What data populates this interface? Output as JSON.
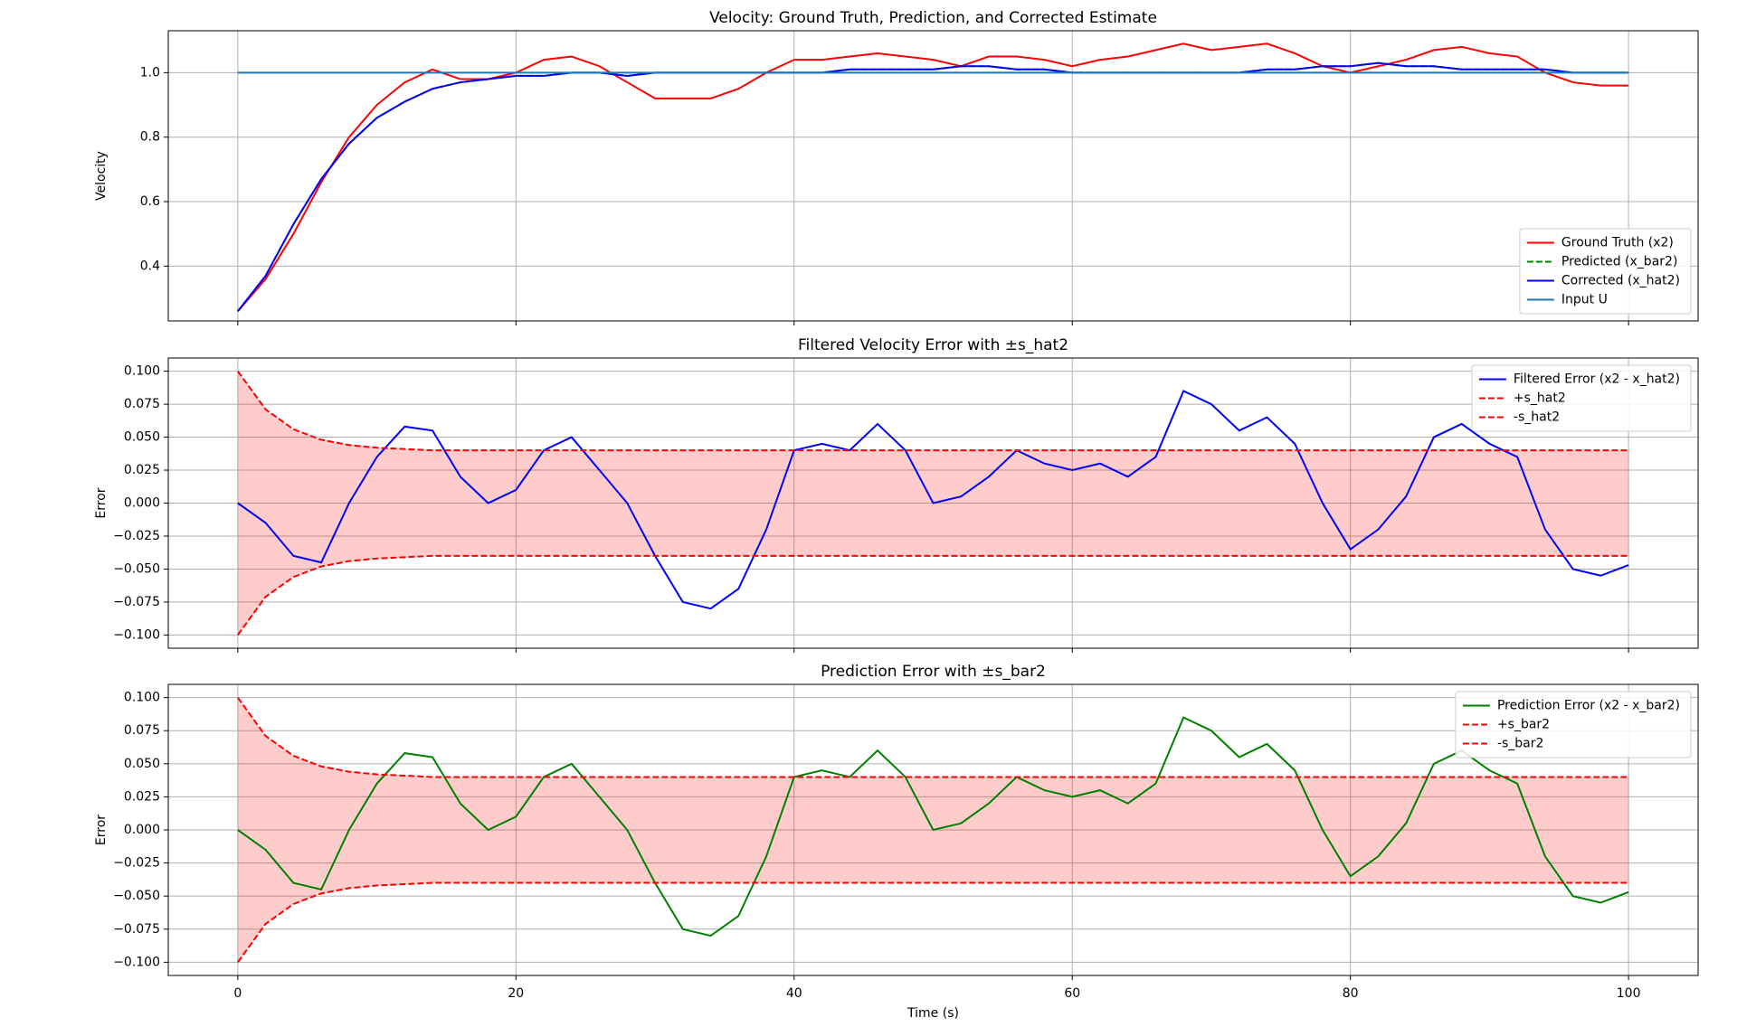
{
  "chart_data": [
    {
      "type": "line",
      "title": "Velocity: Ground Truth, Prediction, and Corrected Estimate",
      "ylabel": "Velocity",
      "x": [
        0,
        2,
        4,
        6,
        8,
        10,
        12,
        14,
        16,
        18,
        20,
        22,
        24,
        26,
        28,
        30,
        32,
        34,
        36,
        38,
        40,
        42,
        44,
        46,
        48,
        50,
        52,
        54,
        56,
        58,
        60,
        62,
        64,
        66,
        68,
        70,
        72,
        74,
        76,
        78,
        80,
        82,
        84,
        86,
        88,
        90,
        92,
        94,
        96,
        98,
        100
      ],
      "series": [
        {
          "name": "Ground Truth (x2)",
          "color": "#ff0000",
          "dash": false,
          "values": [
            0.26,
            0.36,
            0.5,
            0.66,
            0.8,
            0.9,
            0.97,
            1.01,
            0.98,
            0.98,
            1.0,
            1.04,
            1.05,
            1.02,
            0.97,
            0.92,
            0.92,
            0.92,
            0.95,
            1.0,
            1.04,
            1.04,
            1.05,
            1.06,
            1.05,
            1.04,
            1.02,
            1.05,
            1.05,
            1.04,
            1.02,
            1.04,
            1.05,
            1.07,
            1.09,
            1.07,
            1.08,
            1.09,
            1.06,
            1.02,
            1.0,
            1.02,
            1.04,
            1.07,
            1.08,
            1.06,
            1.05,
            1.0,
            0.97,
            0.96,
            0.96
          ]
        },
        {
          "name": "Predicted (x_bar2)",
          "color": "#008000",
          "dash": true,
          "values": [
            0.26,
            0.37,
            0.53,
            0.67,
            0.78,
            0.86,
            0.91,
            0.95,
            0.97,
            0.98,
            0.99,
            0.99,
            1.0,
            1.0,
            0.99,
            1.0,
            1.0,
            1.0,
            1.0,
            1.0,
            1.0,
            1.0,
            1.01,
            1.01,
            1.01,
            1.01,
            1.02,
            1.02,
            1.01,
            1.01,
            1.0,
            1.0,
            1.0,
            1.0,
            1.0,
            1.0,
            1.0,
            1.01,
            1.01,
            1.02,
            1.02,
            1.03,
            1.02,
            1.02,
            1.01,
            1.01,
            1.01,
            1.01,
            1.0,
            1.0,
            1.0
          ]
        },
        {
          "name": "Corrected (x_hat2)",
          "color": "#0000ff",
          "dash": false,
          "values": [
            0.26,
            0.37,
            0.53,
            0.67,
            0.78,
            0.86,
            0.91,
            0.95,
            0.97,
            0.98,
            0.99,
            0.99,
            1.0,
            1.0,
            0.99,
            1.0,
            1.0,
            1.0,
            1.0,
            1.0,
            1.0,
            1.0,
            1.01,
            1.01,
            1.01,
            1.01,
            1.02,
            1.02,
            1.01,
            1.01,
            1.0,
            1.0,
            1.0,
            1.0,
            1.0,
            1.0,
            1.0,
            1.01,
            1.01,
            1.02,
            1.02,
            1.03,
            1.02,
            1.02,
            1.01,
            1.01,
            1.01,
            1.01,
            1.0,
            1.0,
            1.0
          ]
        },
        {
          "name": "Input U",
          "color": "#1f77b4",
          "dash": false,
          "values": [
            1,
            1,
            1,
            1,
            1,
            1,
            1,
            1,
            1,
            1,
            1,
            1,
            1,
            1,
            1,
            1,
            1,
            1,
            1,
            1,
            1,
            1,
            1,
            1,
            1,
            1,
            1,
            1,
            1,
            1,
            1,
            1,
            1,
            1,
            1,
            1,
            1,
            1,
            1,
            1,
            1,
            1,
            1,
            1,
            1,
            1,
            1,
            1,
            1,
            1,
            1
          ]
        }
      ],
      "xlim": [
        -5,
        105
      ],
      "xticks": [
        0,
        20,
        40,
        60,
        80,
        100
      ],
      "ylim": [
        0.23,
        1.13
      ],
      "yticks": [
        0.4,
        0.6,
        0.8,
        {
          "value": 1,
          "label": "1.0"
        }
      ],
      "grid": true,
      "legend": "lower right"
    },
    {
      "type": "line",
      "title": "Filtered Velocity Error with ±s_hat2",
      "ylabel": "Error",
      "x": [
        0,
        2,
        4,
        6,
        8,
        10,
        12,
        14,
        16,
        18,
        20,
        22,
        24,
        26,
        28,
        30,
        32,
        34,
        36,
        38,
        40,
        42,
        44,
        46,
        48,
        50,
        52,
        54,
        56,
        58,
        60,
        62,
        64,
        66,
        68,
        70,
        72,
        74,
        76,
        78,
        80,
        82,
        84,
        86,
        88,
        90,
        92,
        94,
        96,
        98,
        100
      ],
      "series": [
        {
          "name": "Filtered Error (x2 - x_hat2)",
          "color": "#0000ff",
          "dash": false,
          "values": [
            0,
            -0.015,
            -0.04,
            -0.045,
            0,
            0.035,
            0.058,
            0.055,
            0.02,
            0,
            0.01,
            0.04,
            0.05,
            0.025,
            0,
            -0.04,
            -0.075,
            -0.08,
            -0.065,
            -0.02,
            0.04,
            0.045,
            0.04,
            0.06,
            0.04,
            0,
            0.005,
            0.02,
            0.04,
            0.03,
            0.025,
            0.03,
            0.02,
            0.035,
            0.085,
            0.075,
            0.055,
            0.065,
            0.045,
            0,
            -0.035,
            -0.02,
            0.005,
            0.05,
            0.06,
            0.045,
            0.035,
            -0.02,
            -0.05,
            -0.055,
            -0.047
          ]
        },
        {
          "name": "+s_hat2",
          "color": "#ff0000",
          "dash": true,
          "values": [
            0.1,
            0.071,
            0.056,
            0.048,
            0.044,
            0.042,
            0.041,
            0.04,
            0.04,
            0.04,
            0.04,
            0.04,
            0.04,
            0.04,
            0.04,
            0.04,
            0.04,
            0.04,
            0.04,
            0.04,
            0.04,
            0.04,
            0.04,
            0.04,
            0.04,
            0.04,
            0.04,
            0.04,
            0.04,
            0.04,
            0.04,
            0.04,
            0.04,
            0.04,
            0.04,
            0.04,
            0.04,
            0.04,
            0.04,
            0.04,
            0.04,
            0.04,
            0.04,
            0.04,
            0.04,
            0.04,
            0.04,
            0.04,
            0.04,
            0.04,
            0.04
          ]
        },
        {
          "name": "-s_hat2",
          "color": "#ff0000",
          "dash": true,
          "values": [
            -0.1,
            -0.071,
            -0.056,
            -0.048,
            -0.044,
            -0.042,
            -0.041,
            -0.04,
            -0.04,
            -0.04,
            -0.04,
            -0.04,
            -0.04,
            -0.04,
            -0.04,
            -0.04,
            -0.04,
            -0.04,
            -0.04,
            -0.04,
            -0.04,
            -0.04,
            -0.04,
            -0.04,
            -0.04,
            -0.04,
            -0.04,
            -0.04,
            -0.04,
            -0.04,
            -0.04,
            -0.04,
            -0.04,
            -0.04,
            -0.04,
            -0.04,
            -0.04,
            -0.04,
            -0.04,
            -0.04,
            -0.04,
            -0.04,
            -0.04,
            -0.04,
            -0.04,
            -0.04,
            -0.04,
            -0.04,
            -0.04,
            -0.04,
            -0.04
          ]
        }
      ],
      "fill_color": "rgba(255,0,0,0.2)",
      "xlim": [
        -5,
        105
      ],
      "xticks": [
        0,
        20,
        40,
        60,
        80,
        100
      ],
      "ylim": [
        -0.11,
        0.11
      ],
      "yticks": [
        {
          "value": -0.1,
          "label": "−0.100"
        },
        {
          "value": -0.075,
          "label": "−0.075"
        },
        {
          "value": -0.05,
          "label": "−0.050"
        },
        {
          "value": -0.025,
          "label": "−0.025"
        },
        {
          "value": 0,
          "label": "0.000"
        },
        {
          "value": 0.025,
          "label": "0.025"
        },
        {
          "value": 0.05,
          "label": "0.050"
        },
        {
          "value": 0.075,
          "label": "0.075"
        },
        {
          "value": 0.1,
          "label": "0.100"
        }
      ],
      "grid": true,
      "legend": "upper right"
    },
    {
      "type": "line",
      "title": "Prediction Error with ±s_bar2",
      "ylabel": "Error",
      "xlabel": "Time (s)",
      "x": [
        0,
        2,
        4,
        6,
        8,
        10,
        12,
        14,
        16,
        18,
        20,
        22,
        24,
        26,
        28,
        30,
        32,
        34,
        36,
        38,
        40,
        42,
        44,
        46,
        48,
        50,
        52,
        54,
        56,
        58,
        60,
        62,
        64,
        66,
        68,
        70,
        72,
        74,
        76,
        78,
        80,
        82,
        84,
        86,
        88,
        90,
        92,
        94,
        96,
        98,
        100
      ],
      "series": [
        {
          "name": "Prediction Error (x2 - x_bar2)",
          "color": "#008000",
          "dash": false,
          "values": [
            0,
            -0.015,
            -0.04,
            -0.045,
            0,
            0.035,
            0.058,
            0.055,
            0.02,
            0,
            0.01,
            0.04,
            0.05,
            0.025,
            0,
            -0.04,
            -0.075,
            -0.08,
            -0.065,
            -0.02,
            0.04,
            0.045,
            0.04,
            0.06,
            0.04,
            0,
            0.005,
            0.02,
            0.04,
            0.03,
            0.025,
            0.03,
            0.02,
            0.035,
            0.085,
            0.075,
            0.055,
            0.065,
            0.045,
            0,
            -0.035,
            -0.02,
            0.005,
            0.05,
            0.06,
            0.045,
            0.035,
            -0.02,
            -0.05,
            -0.055,
            -0.047
          ]
        },
        {
          "name": "+s_bar2",
          "color": "#ff0000",
          "dash": true,
          "values": [
            0.1,
            0.071,
            0.056,
            0.048,
            0.044,
            0.042,
            0.041,
            0.04,
            0.04,
            0.04,
            0.04,
            0.04,
            0.04,
            0.04,
            0.04,
            0.04,
            0.04,
            0.04,
            0.04,
            0.04,
            0.04,
            0.04,
            0.04,
            0.04,
            0.04,
            0.04,
            0.04,
            0.04,
            0.04,
            0.04,
            0.04,
            0.04,
            0.04,
            0.04,
            0.04,
            0.04,
            0.04,
            0.04,
            0.04,
            0.04,
            0.04,
            0.04,
            0.04,
            0.04,
            0.04,
            0.04,
            0.04,
            0.04,
            0.04,
            0.04,
            0.04
          ]
        },
        {
          "name": "-s_bar2",
          "color": "#ff0000",
          "dash": true,
          "values": [
            -0.1,
            -0.071,
            -0.056,
            -0.048,
            -0.044,
            -0.042,
            -0.041,
            -0.04,
            -0.04,
            -0.04,
            -0.04,
            -0.04,
            -0.04,
            -0.04,
            -0.04,
            -0.04,
            -0.04,
            -0.04,
            -0.04,
            -0.04,
            -0.04,
            -0.04,
            -0.04,
            -0.04,
            -0.04,
            -0.04,
            -0.04,
            -0.04,
            -0.04,
            -0.04,
            -0.04,
            -0.04,
            -0.04,
            -0.04,
            -0.04,
            -0.04,
            -0.04,
            -0.04,
            -0.04,
            -0.04,
            -0.04,
            -0.04,
            -0.04,
            -0.04,
            -0.04,
            -0.04,
            -0.04,
            -0.04,
            -0.04,
            -0.04,
            -0.04
          ]
        }
      ],
      "fill_color": "rgba(255,0,0,0.2)",
      "xlim": [
        -5,
        105
      ],
      "xticks": [
        0,
        20,
        40,
        60,
        80,
        100
      ],
      "ylim": [
        -0.11,
        0.11
      ],
      "yticks": [
        {
          "value": -0.1,
          "label": "−0.100"
        },
        {
          "value": -0.075,
          "label": "−0.075"
        },
        {
          "value": -0.05,
          "label": "−0.050"
        },
        {
          "value": -0.025,
          "label": "−0.025"
        },
        {
          "value": 0,
          "label": "0.000"
        },
        {
          "value": 0.025,
          "label": "0.025"
        },
        {
          "value": 0.05,
          "label": "0.050"
        },
        {
          "value": 0.075,
          "label": "0.075"
        },
        {
          "value": 0.1,
          "label": "0.100"
        }
      ],
      "grid": true,
      "legend": "upper right"
    }
  ]
}
